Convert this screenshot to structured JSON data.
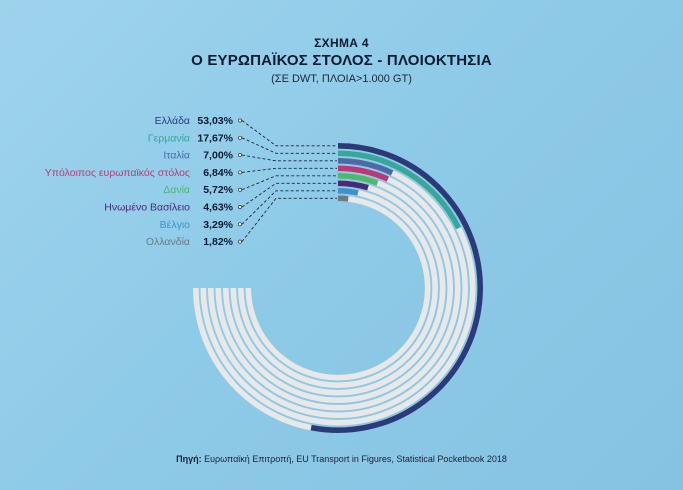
{
  "figure": {
    "number": "ΣΧΗΜΑ 4",
    "title": "Ο ΕΥΡΩΠΑΪΚΟΣ ΣΤΟΛΟΣ - ΠΛΟΙΟΚΤΗΣΙΑ",
    "subtitle": "(ΣΕ DWT, ΠΛΟΙΑ>1.000 GT)"
  },
  "source": {
    "label": "Πηγή:",
    "text": " Ευρωπαϊκή Επιτροπή, EU Transport in Figures, Statistical Pocketbook 2018"
  },
  "chart_data": {
    "type": "radial-bar",
    "unit": "%",
    "max": 100,
    "track_color": "#e8e8e8",
    "categories": [
      "Ελλάδα",
      "Γερμανία",
      "Ιταλία",
      "Υπόλοιπος ευρωπαϊκός στόλος",
      "Δανία",
      "Ηνωμένο Βασίλειο",
      "Βέλγιο",
      "Ολλανδία"
    ],
    "values": [
      53.03,
      17.67,
      7.0,
      6.84,
      5.72,
      4.63,
      3.29,
      1.82
    ],
    "value_labels": [
      "53,03%",
      "17,67%",
      "7,00%",
      "6,84%",
      "5,72%",
      "4,63%",
      "3,29%",
      "1,82%"
    ],
    "colors": [
      "#2b3a79",
      "#36a89a",
      "#4a6ba8",
      "#b83a78",
      "#4fb86b",
      "#4a2a78",
      "#3f92c9",
      "#6f7a80"
    ]
  }
}
